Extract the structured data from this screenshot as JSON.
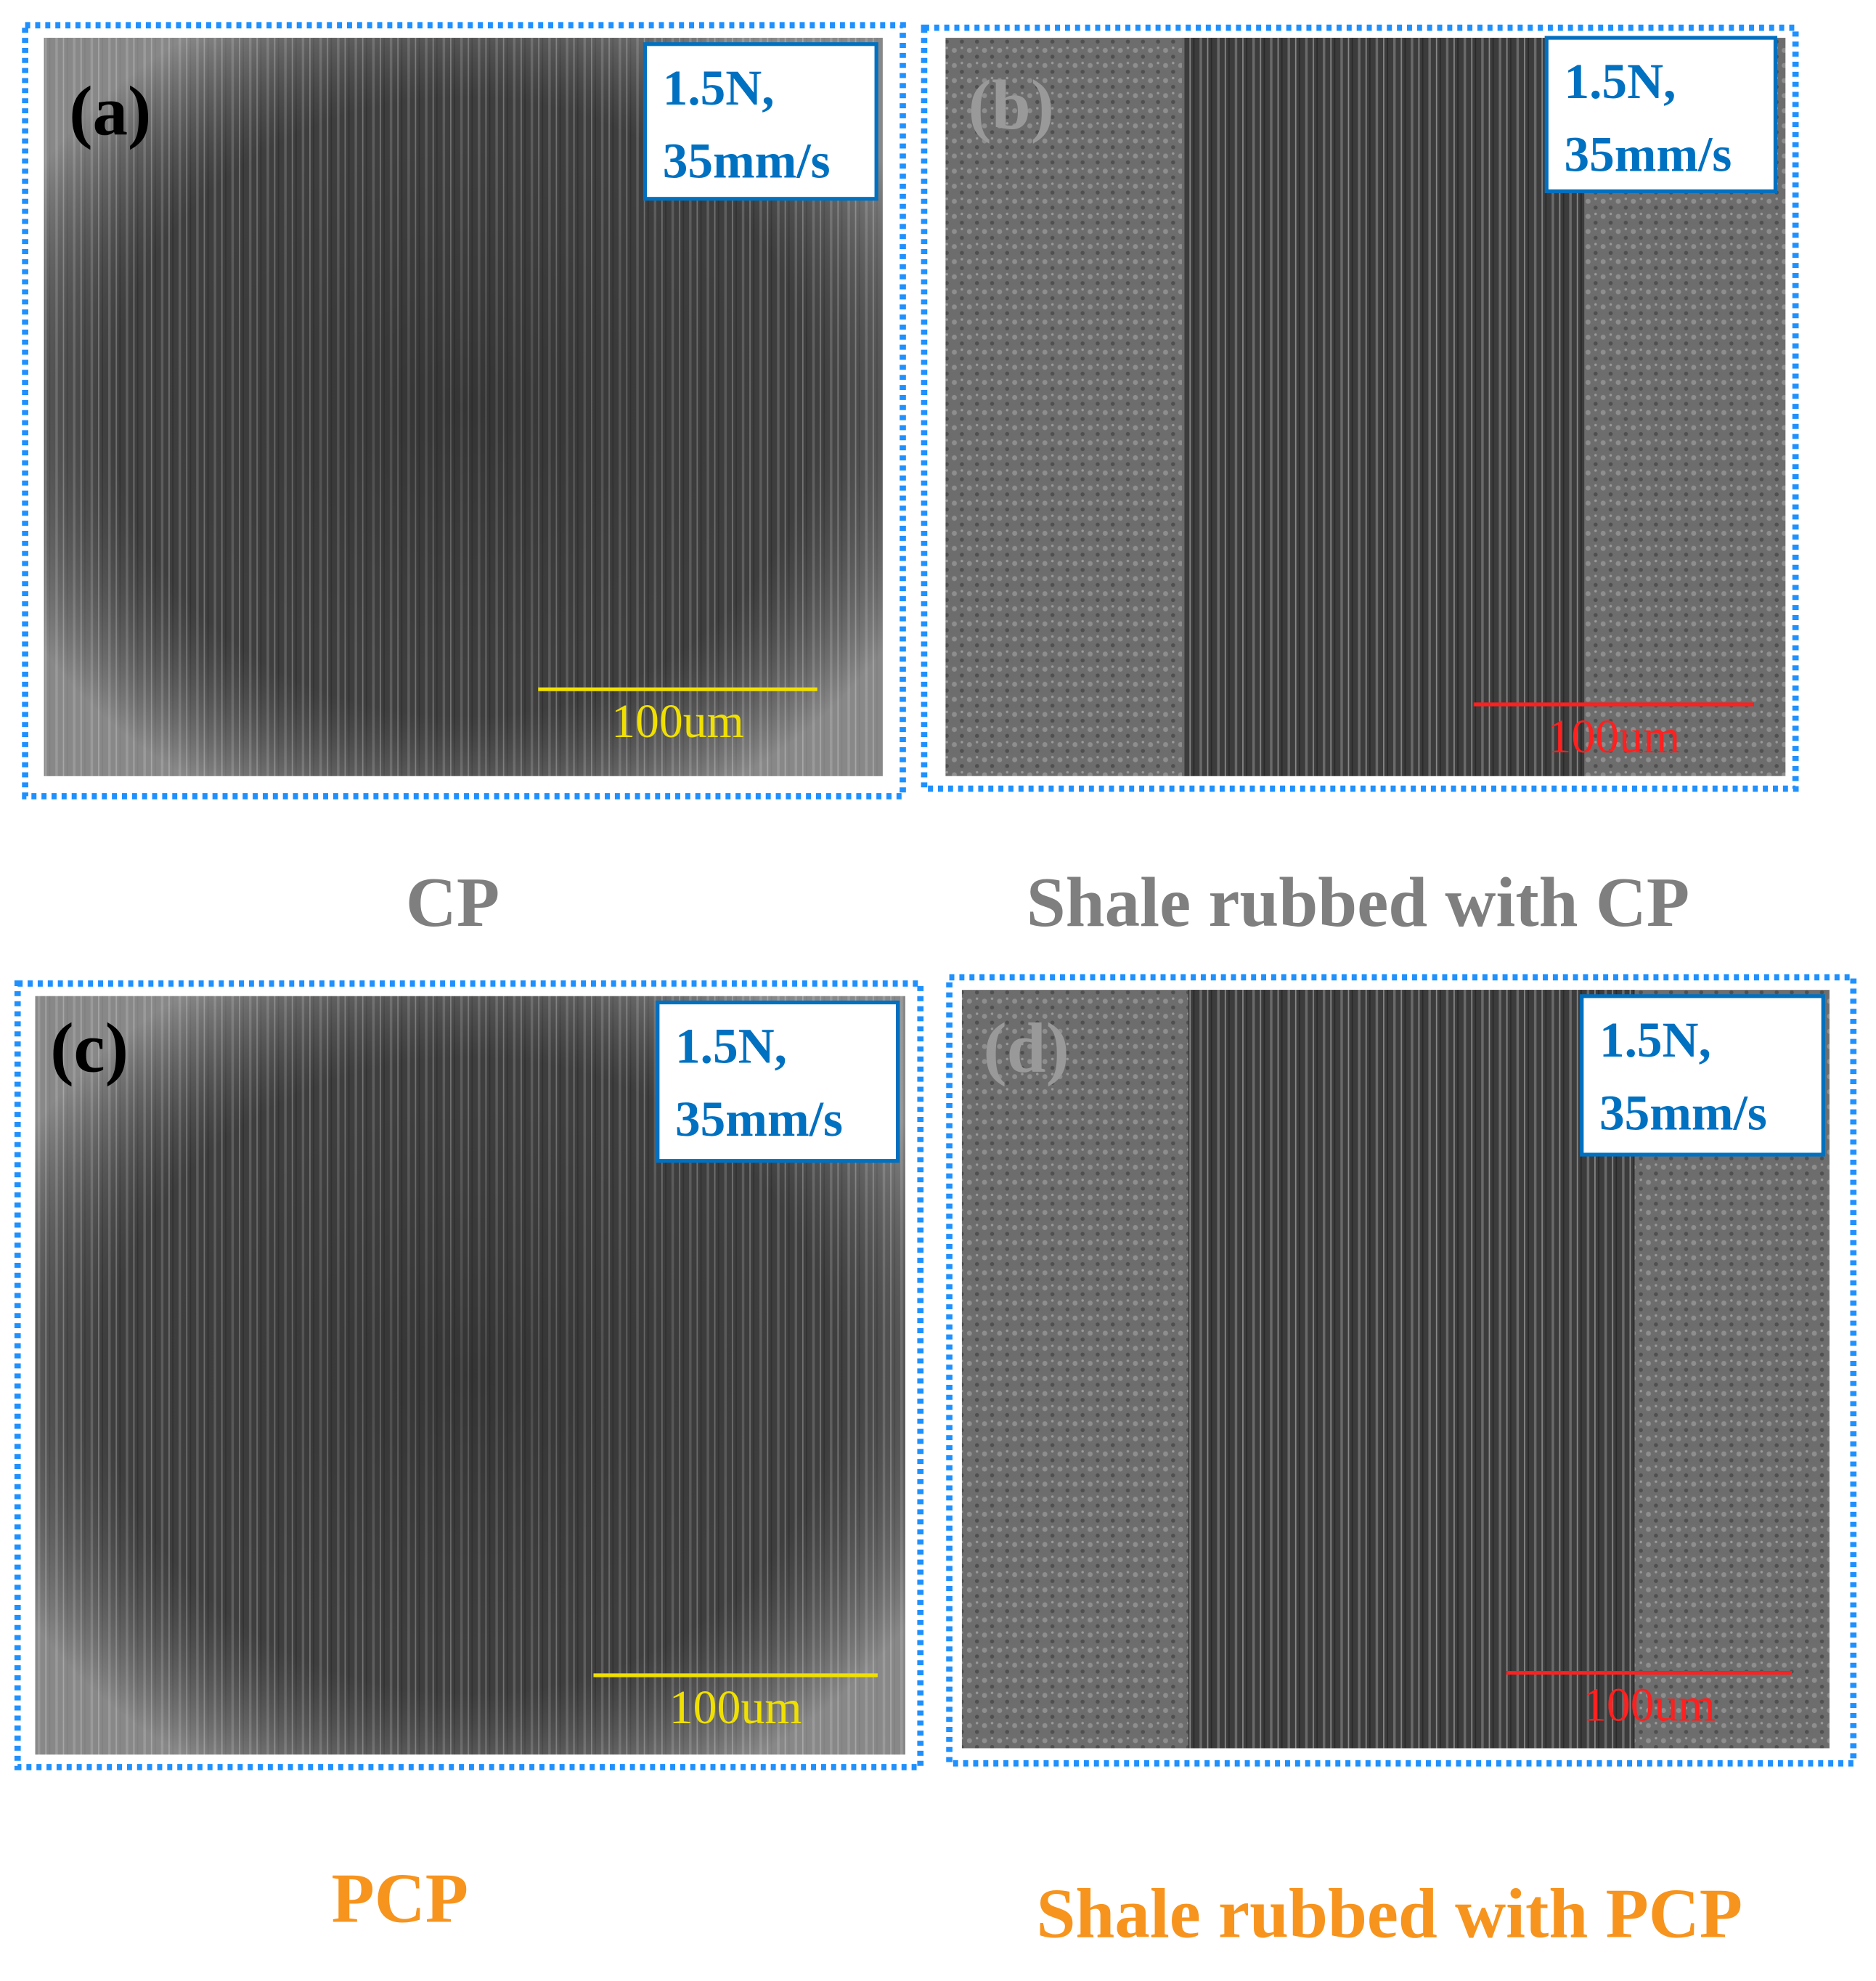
{
  "panels": [
    {
      "label": "(a)",
      "info": [
        "1.5N,",
        "35mm/s"
      ],
      "scale_bar": "100um",
      "caption": "CP"
    },
    {
      "label": "(b)",
      "info": [
        "1.5N,",
        "35mm/s"
      ],
      "scale_bar": "100um",
      "caption": "Shale rubbed with CP"
    },
    {
      "label": "(c)",
      "info": [
        "1.5N,",
        "35mm/s"
      ],
      "scale_bar": "100um",
      "caption": "PCP"
    },
    {
      "label": "(d)",
      "info": [
        "1.5N,",
        "35mm/s"
      ],
      "scale_bar": "100um",
      "caption": "Shale rubbed with PCP"
    }
  ]
}
